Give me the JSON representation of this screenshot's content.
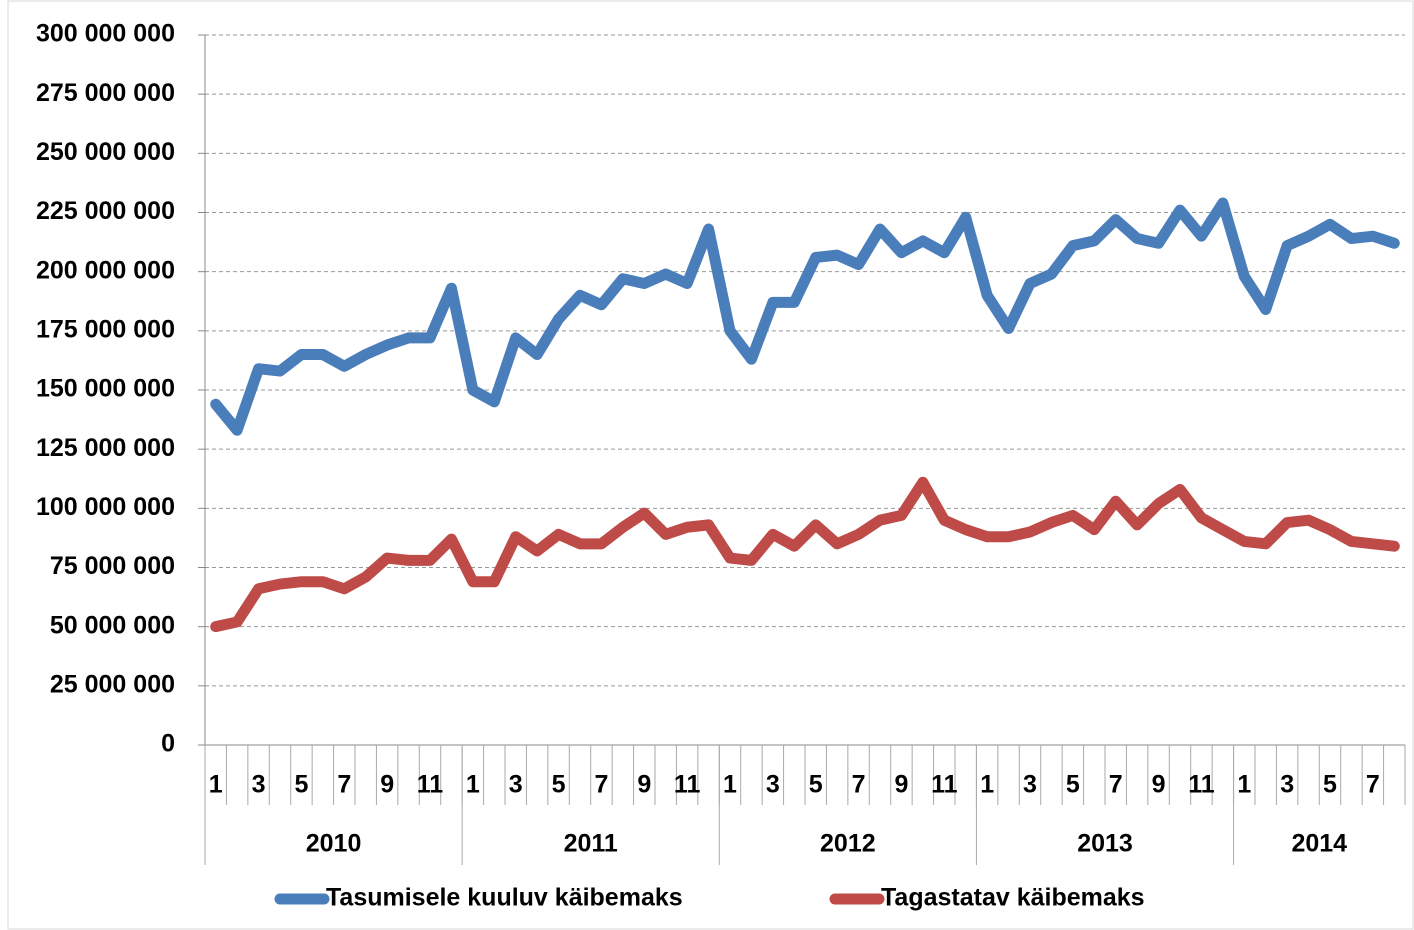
{
  "chart_data": {
    "type": "line",
    "categories": [
      "1",
      null,
      "3",
      null,
      "5",
      null,
      "7",
      null,
      "9",
      null,
      "11",
      null,
      "1",
      null,
      "3",
      null,
      "5",
      null,
      "7",
      null,
      "9",
      null,
      "11",
      null,
      "1",
      null,
      "3",
      null,
      "5",
      null,
      "7",
      null,
      "9",
      null,
      "11",
      null,
      "1",
      null,
      "3",
      null,
      "5",
      null,
      "7",
      null,
      "9",
      null,
      "11",
      null,
      "1",
      null,
      "3",
      null,
      "5",
      null,
      "7",
      null
    ],
    "year_groups": [
      {
        "label": "2010",
        "span": 12
      },
      {
        "label": "2011",
        "span": 12
      },
      {
        "label": "2012",
        "span": 12
      },
      {
        "label": "2013",
        "span": 12
      },
      {
        "label": "2014",
        "span": 8
      }
    ],
    "series": [
      {
        "name": "Tasumisele kuuluv käibemaks",
        "color": "#4a7ebb",
        "values": [
          144000000,
          133000000,
          159000000,
          158000000,
          165000000,
          165000000,
          160000000,
          165000000,
          169000000,
          172000000,
          172000000,
          193000000,
          150000000,
          145000000,
          172000000,
          165000000,
          180000000,
          190000000,
          186000000,
          197000000,
          195000000,
          199000000,
          195000000,
          218000000,
          175000000,
          163000000,
          187000000,
          187000000,
          206000000,
          207000000,
          203000000,
          218000000,
          208000000,
          213000000,
          208000000,
          223000000,
          190000000,
          176000000,
          195000000,
          199000000,
          211000000,
          213000000,
          222000000,
          214000000,
          212000000,
          226000000,
          215000000,
          229000000,
          198000000,
          184000000,
          211000000,
          215000000,
          220000000,
          214000000,
          215000000,
          212000000
        ]
      },
      {
        "name": "Tagastatav käibemaks",
        "color": "#be4b48",
        "values": [
          50000000,
          52000000,
          66000000,
          68000000,
          69000000,
          69000000,
          66000000,
          71000000,
          79000000,
          78000000,
          78000000,
          87000000,
          69000000,
          69000000,
          88000000,
          82000000,
          89000000,
          85000000,
          85000000,
          92000000,
          98000000,
          89000000,
          92000000,
          93000000,
          79000000,
          78000000,
          89000000,
          84000000,
          93000000,
          85000000,
          89000000,
          95000000,
          97000000,
          111000000,
          95000000,
          91000000,
          88000000,
          88000000,
          90000000,
          94000000,
          97000000,
          91000000,
          103000000,
          93000000,
          102000000,
          108000000,
          96000000,
          91000000,
          86000000,
          85000000,
          94000000,
          95000000,
          91000000,
          86000000,
          85000000,
          84000000
        ]
      }
    ],
    "ylim": [
      0,
      300000000
    ],
    "yticks": [
      0,
      {
        "value": 25000000,
        "label": "25 000 000"
      },
      {
        "value": 50000000,
        "label": "50 000 000"
      },
      {
        "value": 75000000,
        "label": "75 000 000"
      },
      {
        "value": 100000000,
        "label": "100 000 000"
      },
      {
        "value": 125000000,
        "label": "125 000 000"
      },
      {
        "value": 150000000,
        "label": "150 000 000"
      },
      {
        "value": 175000000,
        "label": "175 000 000"
      },
      {
        "value": 200000000,
        "label": "200 000 000"
      },
      {
        "value": 225000000,
        "label": "225 000 000"
      },
      {
        "value": 250000000,
        "label": "250 000 000"
      },
      {
        "value": 275000000,
        "label": "275 000 000"
      },
      {
        "value": 300000000,
        "label": "300 000 000"
      }
    ],
    "grid": true,
    "legend": "bottom"
  }
}
